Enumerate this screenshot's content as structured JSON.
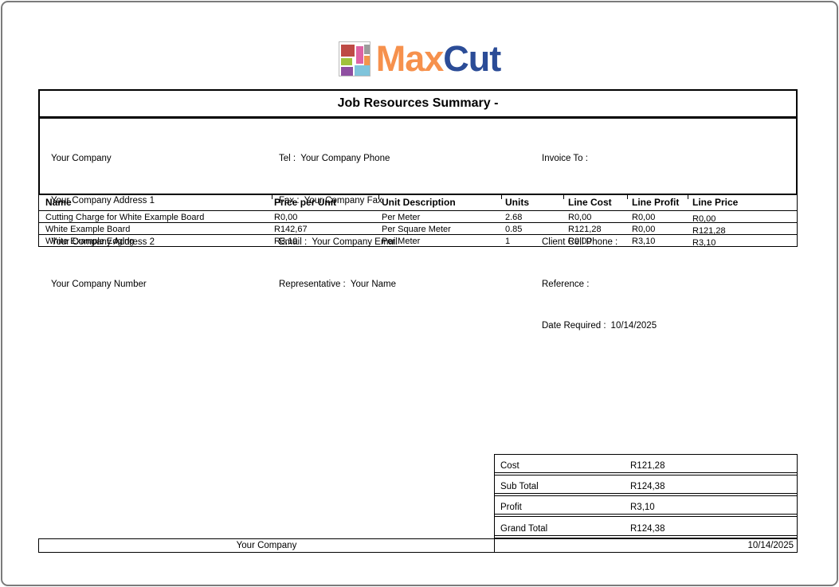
{
  "logo": {
    "text_orange": "Max",
    "text_blue": "Cut",
    "colors": {
      "orange_text": "#F6914D",
      "blue_text": "#2B4C97",
      "block_red": "#BE4A45",
      "block_gray": "#9C9C9C",
      "block_pink": "#DE62A4",
      "block_green": "#A0C23C",
      "block_orange": "#F2954C",
      "block_purple": "#8F4FA1",
      "block_blue": "#7FC4DB"
    }
  },
  "title": "Job Resources Summary -",
  "info": {
    "company_lines": [
      "Your Company",
      "Your Company Address 1",
      "Your Company Address 2",
      "Your Company Number"
    ],
    "contact_lines": [
      "Tel :  Your Company Phone",
      "Fax :  Your Company Fax",
      "Email :  Your Company Email",
      "Representative :  Your Name"
    ],
    "invoice_to_label": "Invoice To :",
    "client_cell_label": "Client Cell Phone :",
    "reference_label": "Reference :",
    "date_required_label": "Date Required :",
    "date_required_value": "10/14/2025"
  },
  "table": {
    "columns": [
      "Name",
      "Price per Unit",
      "Unit Description",
      "Units",
      "Line Cost",
      "Line Profit",
      "Line Price"
    ],
    "rows": [
      [
        "Cutting Charge for White Example Board",
        "R0,00",
        "Per Meter",
        "2.68",
        "R0,00",
        "R0,00",
        "R0,00"
      ],
      [
        "White Example Board",
        "R142,67",
        "Per Square Meter",
        "0.85",
        "R121,28",
        "R0,00",
        "R121,28"
      ],
      [
        "White Example Edging",
        "R3,10",
        "Per Meter",
        "1",
        "R0,00",
        "R3,10",
        "R3,10"
      ]
    ]
  },
  "totals": {
    "rows": [
      {
        "label": "Cost",
        "value": "R121,28"
      },
      {
        "label": "Sub Total",
        "value": "R124,38"
      },
      {
        "label": "Profit",
        "value": "R3,10"
      },
      {
        "label": "Grand Total",
        "value": "R124,38"
      }
    ]
  },
  "footer": {
    "company": "Your Company",
    "date": "10/14/2025"
  }
}
